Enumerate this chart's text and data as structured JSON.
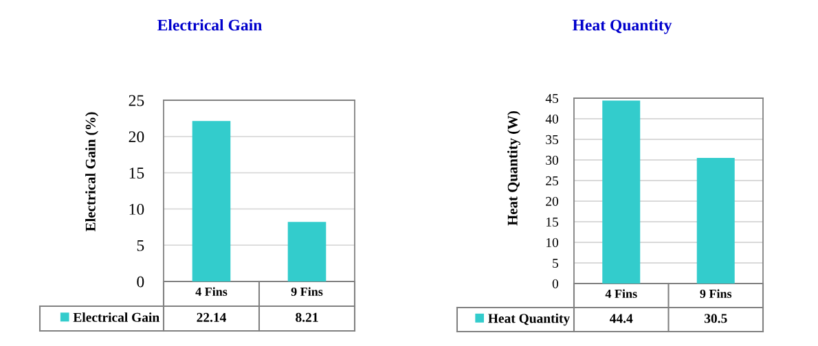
{
  "chart_data": [
    {
      "type": "bar",
      "title": "Electrical Gain",
      "ylabel": "Electrical Gain (%)",
      "categories": [
        "4 Fins",
        "9 Fins"
      ],
      "series": [
        {
          "name": "Electrical Gain",
          "color": "#33cccc",
          "values": [
            22.14,
            8.21
          ]
        }
      ],
      "ylim": [
        0,
        25
      ],
      "yticks": [
        0,
        5,
        10,
        15,
        20,
        25
      ],
      "grid": "y",
      "legend": "bottom left",
      "data_labels": true
    },
    {
      "type": "bar",
      "title": "Heat Quantity",
      "ylabel": "Heat Quantity (W)",
      "categories": [
        "4 Fins",
        "9 Fins"
      ],
      "series": [
        {
          "name": "Heat Quantity",
          "color": "#33cccc",
          "values": [
            44.4,
            30.5
          ]
        }
      ],
      "ylim": [
        0,
        45
      ],
      "yticks": [
        0,
        5,
        10,
        15,
        20,
        25,
        30,
        35,
        40,
        45
      ],
      "grid": "y",
      "legend": "bottom left",
      "data_labels": true
    }
  ]
}
